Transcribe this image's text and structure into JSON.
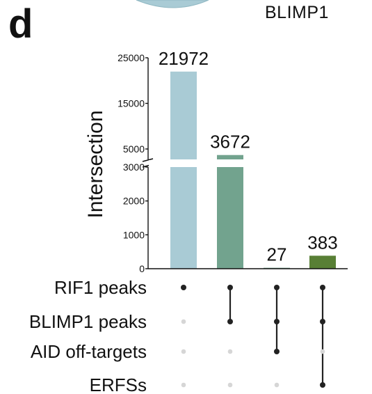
{
  "panel_letter": "d",
  "top_label": "BLIMP1",
  "chart_data": {
    "type": "bar",
    "ylabel": "Intersection",
    "y_axis_broken": true,
    "y_lower_range": [
      0,
      3000
    ],
    "y_upper_range": [
      5000,
      25000
    ],
    "y_lower_ticks": [
      "0",
      "1000",
      "2000",
      "3000"
    ],
    "y_upper_ticks": [
      "5000",
      "15000",
      "25000"
    ],
    "values": [
      21972,
      3672,
      27,
      383
    ],
    "value_labels": [
      "21972",
      "3672",
      "27",
      "383"
    ],
    "bar_colors": [
      "#a9cbd5",
      "#72a38e",
      "#72a38e",
      "#587f35"
    ],
    "sets": [
      "RIF1 peaks",
      "BLIMP1 peaks",
      "AID off-targets",
      "ERFSs"
    ],
    "membership": [
      [
        1,
        0,
        0,
        0
      ],
      [
        1,
        1,
        0,
        0
      ],
      [
        1,
        1,
        1,
        0
      ],
      [
        1,
        1,
        0,
        1
      ]
    ],
    "dot_active_color": "#222222",
    "dot_inactive_color": "#d6d6d6"
  }
}
